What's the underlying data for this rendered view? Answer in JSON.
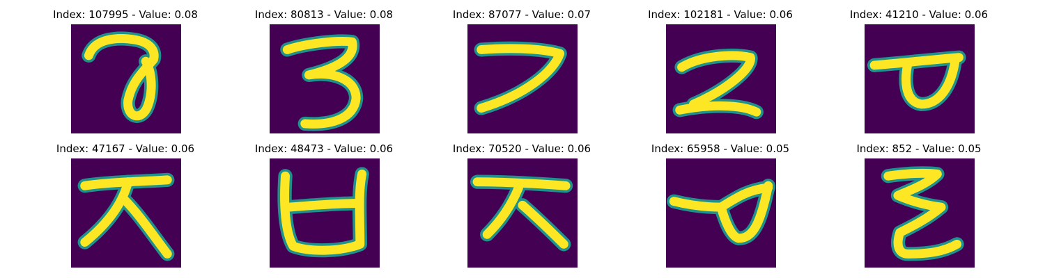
{
  "colors": {
    "background": "#440154",
    "stroke_core": "#fde725",
    "stroke_edge": "#21918c"
  },
  "panels": [
    {
      "title": "Index: 107995 - Value: 0.08",
      "glyph": "hand-drawn-loop-7"
    },
    {
      "title": "Index: 80813 - Value: 0.08",
      "glyph": "hand-drawn-3"
    },
    {
      "title": "Index: 87077 - Value: 0.07",
      "glyph": "hand-drawn-7"
    },
    {
      "title": "Index: 102181 - Value: 0.06",
      "glyph": "hand-drawn-z"
    },
    {
      "title": "Index: 41210 - Value: 0.06",
      "glyph": "hand-drawn-loop-t"
    },
    {
      "title": "Index: 47167 - Value: 0.06",
      "glyph": "hand-drawn-ja"
    },
    {
      "title": "Index: 48473 - Value: 0.06",
      "glyph": "hand-drawn-bieup"
    },
    {
      "title": "Index: 70520 - Value: 0.06",
      "glyph": "hand-drawn-ja"
    },
    {
      "title": "Index: 65958 - Value: 0.05",
      "glyph": "hand-drawn-loop-d"
    },
    {
      "title": "Index: 852 - Value: 0.05",
      "glyph": "hand-drawn-zigzag"
    }
  ]
}
